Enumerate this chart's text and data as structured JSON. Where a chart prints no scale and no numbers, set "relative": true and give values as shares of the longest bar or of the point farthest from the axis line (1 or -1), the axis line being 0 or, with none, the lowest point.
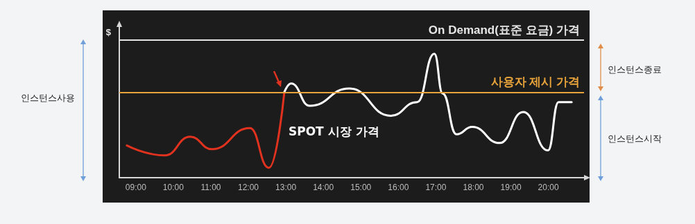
{
  "chart_data": {
    "type": "line",
    "ylabel": "$",
    "relative": true,
    "tick_labels": "x",
    "xlim": [
      8.56,
      20.95
    ],
    "xticks": [
      {
        "value": 9,
        "label": "09:00"
      },
      {
        "value": 10,
        "label": "10:00"
      },
      {
        "value": 11,
        "label": "11:00"
      },
      {
        "value": 12,
        "label": "12:00"
      },
      {
        "value": 13,
        "label": "13:00"
      },
      {
        "value": 14,
        "label": "14:00"
      },
      {
        "value": 15,
        "label": "15:00"
      },
      {
        "value": 16,
        "label": "16:00"
      },
      {
        "value": 17,
        "label": "17:00"
      },
      {
        "value": 18,
        "label": "18:00"
      },
      {
        "value": 19,
        "label": "19:00"
      },
      {
        "value": 20,
        "label": "20:00"
      }
    ],
    "series": [
      {
        "color": "#e0321e",
        "x": [
          8.76,
          9.77,
          10.45,
          11.03,
          12.04,
          12.55,
          12.96
        ],
        "values": [
          0.26,
          0.18,
          0.33,
          0.23,
          0.4,
          0.08,
          0.69
        ]
      },
      {
        "name": "SPOT 시장 가격",
        "color": "#ffffff",
        "x": [
          12.96,
          13.14,
          13.64,
          14.69,
          15.8,
          16.5,
          16.96,
          17.18,
          17.55,
          17.97,
          18.7,
          19.33,
          19.99,
          20.27,
          20.62
        ],
        "values": [
          0.69,
          0.76,
          0.58,
          0.72,
          0.5,
          0.61,
          1,
          0.68,
          0.35,
          0.41,
          0.28,
          0.53,
          0.22,
          0.61,
          0.61
        ]
      }
    ],
    "ref_lines": [
      {
        "axis": "y",
        "value": 1.106,
        "label": "On Demand(표준 요금) 가격",
        "color": "#e6e6e6"
      },
      {
        "axis": "y",
        "value": 0.687,
        "label": "사용자 제시 가격",
        "color": "#e8a33a"
      }
    ],
    "annotations": [
      "인스턴스사용",
      "인스턴스종료",
      "인스턴스시작"
    ]
  }
}
